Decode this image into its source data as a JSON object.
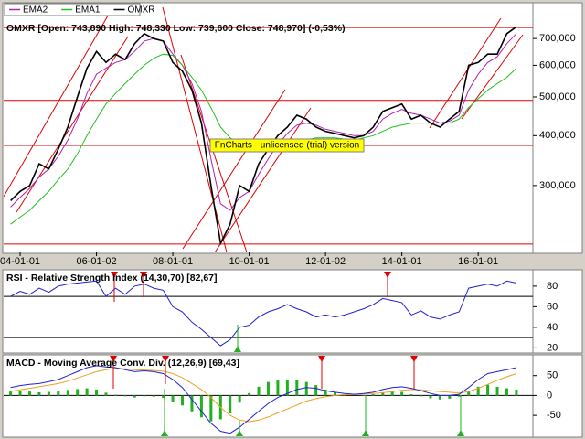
{
  "chart_data": [
    {
      "type": "line",
      "title": "OMXR [Open: 743,890  High: 748,330  Low: 739,600  Close: 748,970] (-0,53%)",
      "annotation": "FnCharts - unlicensed (trial) version",
      "log_scale": true,
      "ylim": [
        204000,
        856000
      ],
      "yticks": [
        {
          "value": 300000,
          "label": "300,000"
        },
        {
          "value": 400000,
          "label": "400,000"
        },
        {
          "value": 500000,
          "label": "500,000"
        },
        {
          "value": 600000,
          "label": "600,000"
        },
        {
          "value": 700000,
          "label": "700,000"
        }
      ],
      "levels": [
        746000,
        490000,
        378000,
        214000
      ],
      "level_color": "#e00000",
      "categories": [
        null,
        "04-01-01",
        null,
        null,
        null,
        null,
        null,
        null,
        null,
        "06-01-02",
        null,
        null,
        null,
        null,
        null,
        null,
        null,
        "08-01-01",
        null,
        null,
        null,
        null,
        null,
        null,
        null,
        "10-01-01",
        null,
        null,
        null,
        null,
        null,
        null,
        null,
        "12-01-02",
        null,
        null,
        null,
        null,
        null,
        null,
        null,
        "14-01-01",
        null,
        null,
        null,
        null,
        null,
        null,
        null,
        "16-01-01",
        null,
        null,
        null,
        null
      ],
      "series": [
        {
          "name": "EMA2",
          "color": "#b020b0",
          "values": [
            265000,
            280000,
            295000,
            315000,
            330000,
            355000,
            390000,
            440000,
            510000,
            570000,
            590000,
            610000,
            620000,
            650000,
            690000,
            700000,
            690000,
            640000,
            600000,
            540000,
            460000,
            350000,
            270000,
            260000,
            280000,
            290000,
            320000,
            350000,
            380000,
            405000,
            425000,
            430000,
            425000,
            415000,
            410000,
            405000,
            400000,
            400000,
            410000,
            440000,
            455000,
            465000,
            455000,
            450000,
            440000,
            430000,
            435000,
            450000,
            520000,
            570000,
            610000,
            630000,
            680000,
            720000
          ]
        },
        {
          "name": "EMA1",
          "color": "#20c020",
          "values": [
            240000,
            250000,
            260000,
            275000,
            290000,
            310000,
            330000,
            360000,
            400000,
            440000,
            480000,
            510000,
            540000,
            570000,
            600000,
            625000,
            640000,
            635000,
            600000,
            560000,
            520000,
            470000,
            420000,
            395000,
            380000,
            372000,
            370000,
            372000,
            375000,
            380000,
            385000,
            390000,
            395000,
            395000,
            395000,
            392000,
            390000,
            395000,
            400000,
            410000,
            420000,
            425000,
            430000,
            430000,
            430000,
            430000,
            430000,
            440000,
            470000,
            495000,
            520000,
            540000,
            560000,
            590000
          ]
        },
        {
          "name": "OMXR",
          "color": "#000000",
          "values": [
            275000,
            290000,
            300000,
            340000,
            330000,
            370000,
            420000,
            500000,
            590000,
            650000,
            610000,
            640000,
            620000,
            680000,
            720000,
            700000,
            690000,
            610000,
            580000,
            520000,
            430000,
            300000,
            215000,
            240000,
            300000,
            290000,
            340000,
            370000,
            400000,
            420000,
            450000,
            440000,
            420000,
            410000,
            405000,
            400000,
            395000,
            400000,
            420000,
            460000,
            470000,
            480000,
            440000,
            450000,
            430000,
            420000,
            440000,
            460000,
            600000,
            610000,
            640000,
            640000,
            720000,
            749000
          ]
        }
      ]
    },
    {
      "type": "line",
      "title": "RSI - Relative Strength Index (14,30,70) [82,67]",
      "ylim": [
        15,
        95
      ],
      "yticks": [
        20,
        40,
        60,
        80
      ],
      "levels": [
        30,
        70
      ],
      "level_color": "#000000",
      "series": [
        {
          "color": "#2020d0",
          "values": [
            70,
            75,
            72,
            78,
            74,
            80,
            82,
            83,
            84,
            85,
            70,
            78,
            72,
            80,
            82,
            78,
            76,
            60,
            55,
            45,
            38,
            30,
            22,
            28,
            40,
            42,
            50,
            55,
            58,
            62,
            58,
            55,
            50,
            52,
            50,
            52,
            55,
            58,
            62,
            68,
            66,
            64,
            52,
            56,
            50,
            48,
            52,
            55,
            78,
            80,
            82,
            80,
            85,
            83
          ]
        }
      ]
    },
    {
      "type": "line",
      "title": "MACD - Moving Average Conv. Div. (12,26,9) [69,43]",
      "ylim": [
        -105,
        100
      ],
      "yticks": [
        -50,
        0,
        50
      ],
      "levels": [
        0
      ],
      "level_color": "#000000",
      "series": [
        {
          "style": "histogram",
          "color": "#20b020",
          "values": [
            10,
            11,
            10,
            8,
            9,
            10,
            14,
            16,
            18,
            15,
            7,
            2,
            -2,
            -5,
            -2,
            -3,
            -6,
            -15,
            -25,
            -40,
            -55,
            -65,
            -60,
            -45,
            -18,
            6,
            22,
            34,
            39,
            39,
            39,
            34,
            26,
            15,
            8,
            3,
            0,
            1,
            3,
            8,
            10,
            9,
            3,
            -2,
            -7,
            -10,
            -8,
            -3,
            10,
            22,
            27,
            22,
            18,
            15
          ]
        },
        {
          "color": "#f0a020",
          "values": [
            10,
            14,
            18,
            22,
            26,
            30,
            36,
            44,
            52,
            60,
            65,
            68,
            67,
            65,
            64,
            63,
            61,
            55,
            45,
            30,
            15,
            -5,
            -30,
            -50,
            -62,
            -66,
            -62,
            -54,
            -44,
            -34,
            -24,
            -14,
            -8,
            -3,
            0,
            2,
            3,
            4,
            5,
            7,
            10,
            13,
            15,
            14,
            12,
            10,
            8,
            6,
            10,
            18,
            28,
            38,
            47,
            55
          ]
        },
        {
          "color": "#2020d0",
          "values": [
            20,
            25,
            28,
            30,
            35,
            40,
            50,
            60,
            70,
            75,
            72,
            70,
            65,
            60,
            62,
            60,
            55,
            40,
            20,
            -10,
            -40,
            -70,
            -90,
            -95,
            -80,
            -60,
            -40,
            -20,
            -5,
            5,
            15,
            20,
            18,
            12,
            8,
            5,
            3,
            5,
            8,
            15,
            20,
            22,
            18,
            12,
            5,
            0,
            0,
            3,
            20,
            40,
            55,
            60,
            65,
            70
          ]
        }
      ]
    }
  ]
}
